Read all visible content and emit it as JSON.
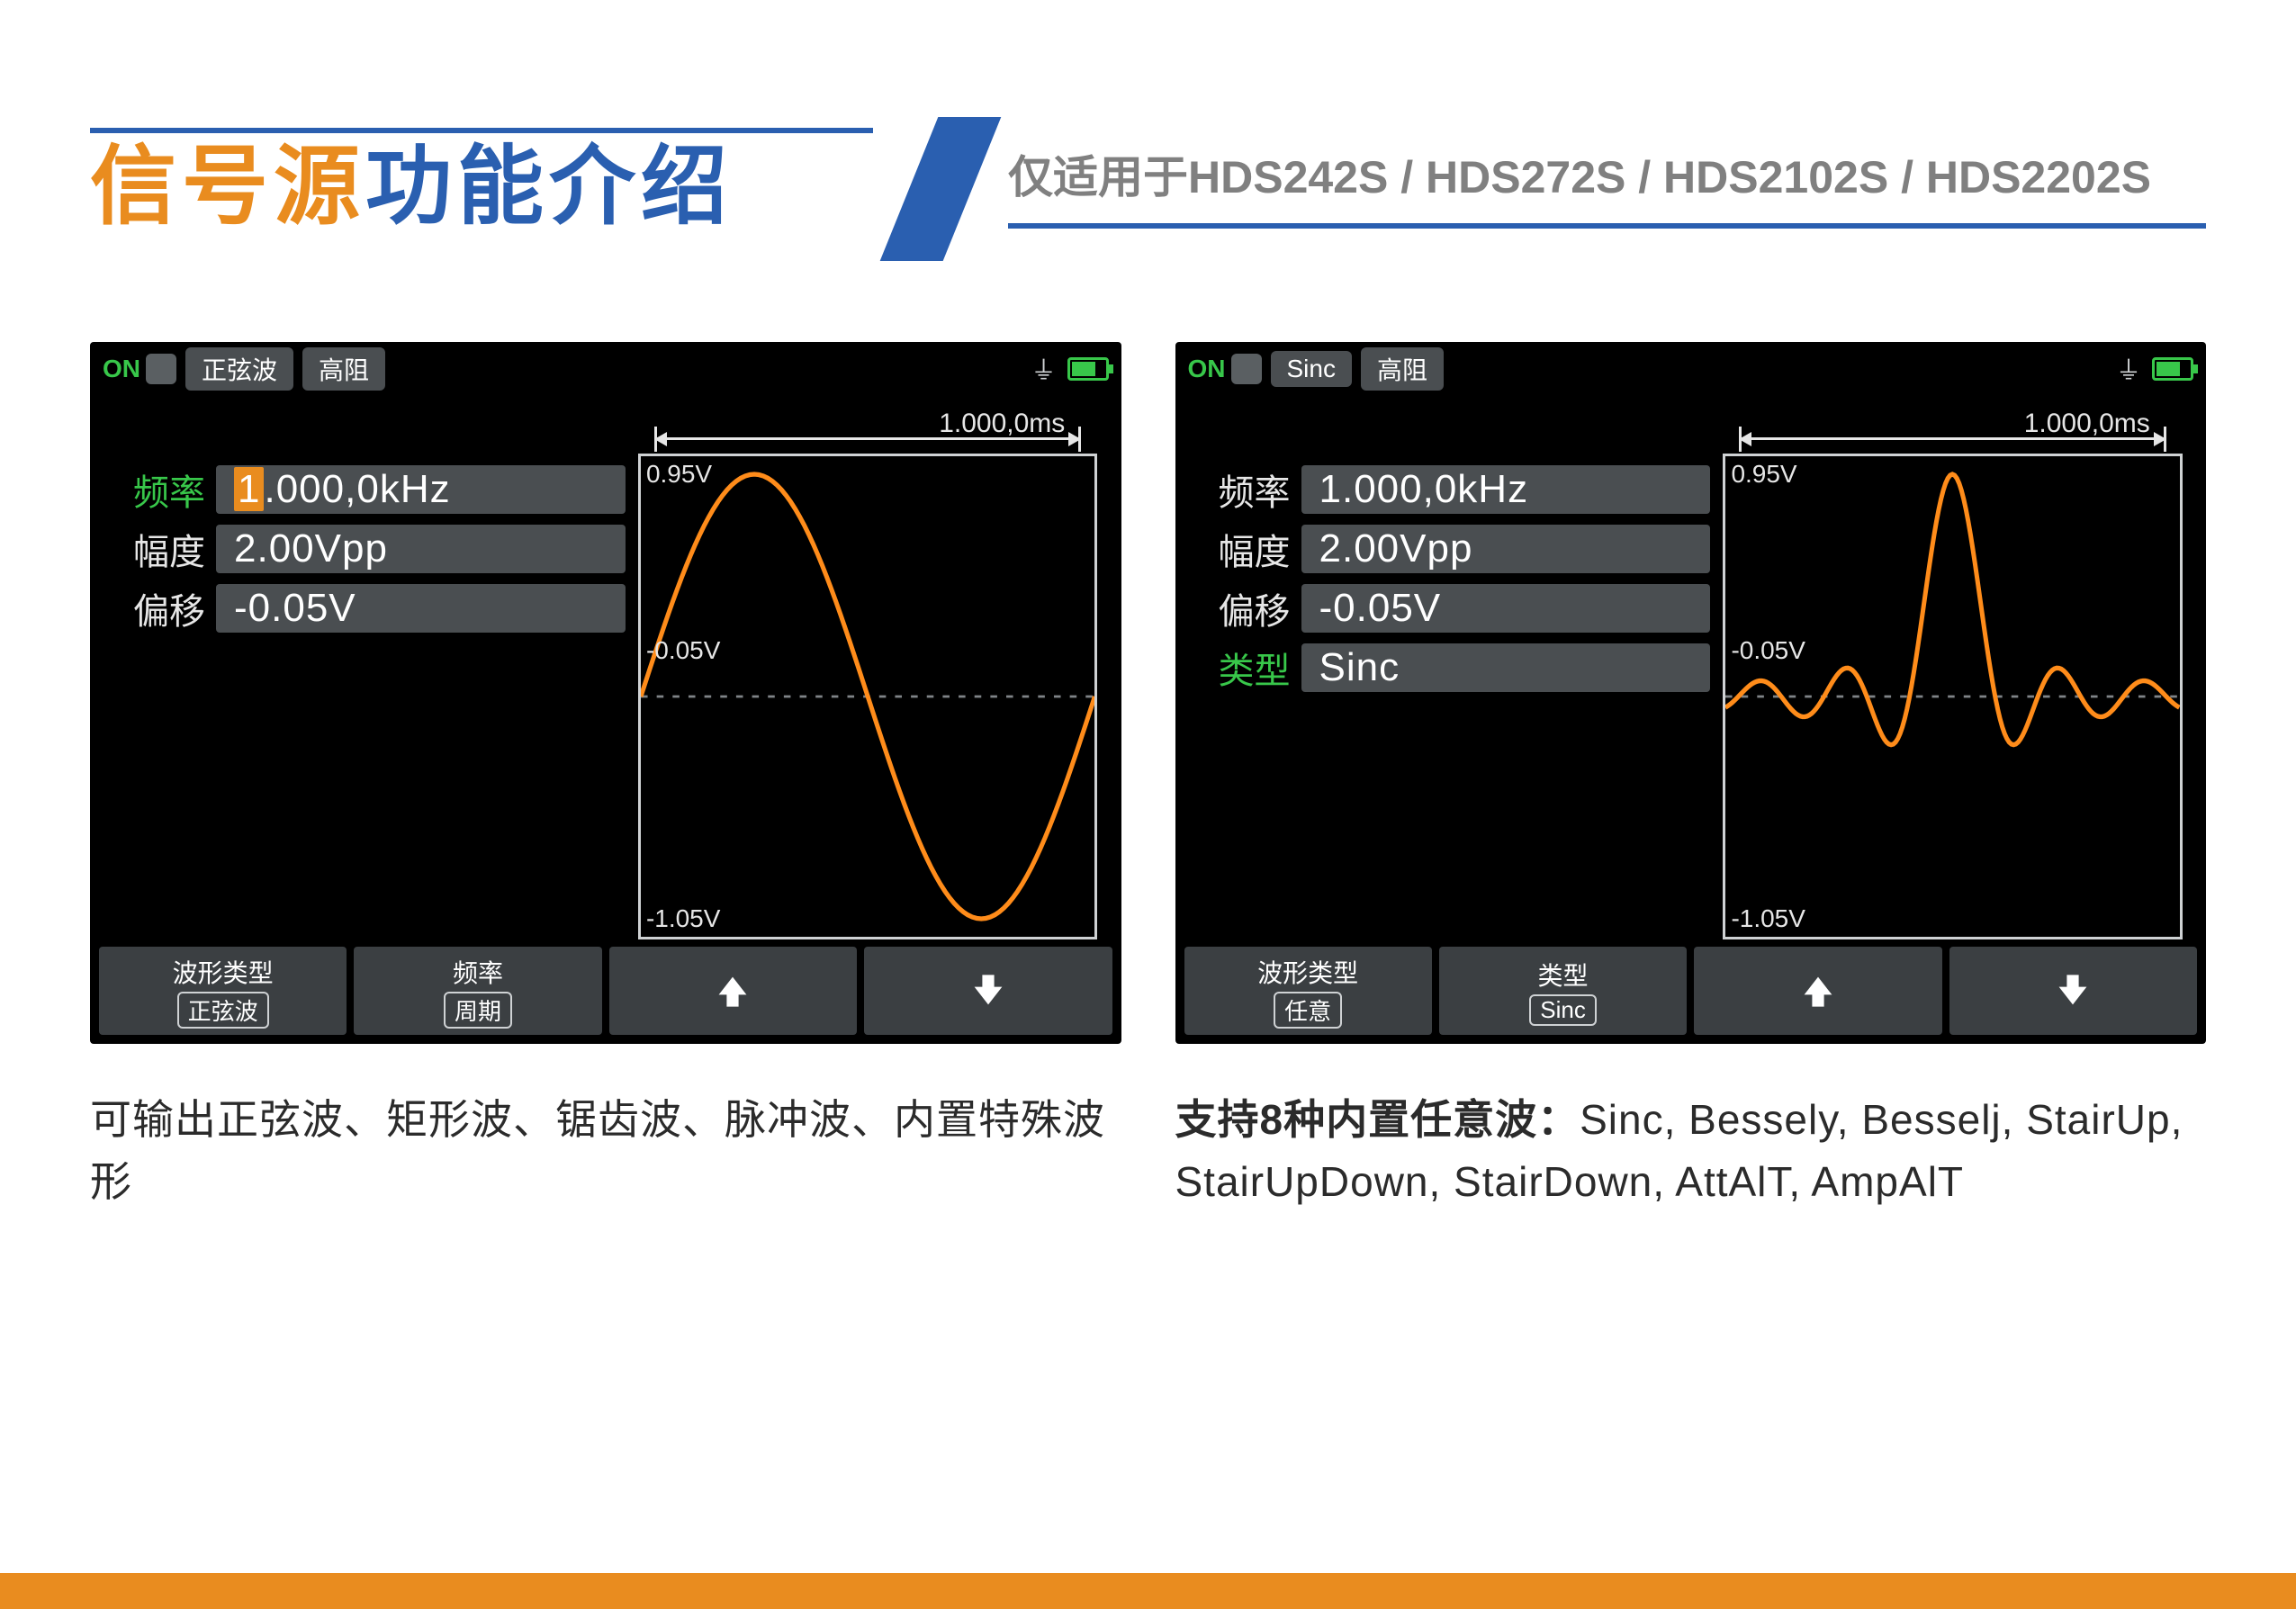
{
  "header": {
    "title_orange": "信号源",
    "title_blue": "功能介绍",
    "subtitle": "仅适用于HDS242S / HDS272S / HDS2102S / HDS2202S"
  },
  "colors": {
    "accent_orange": "#e98c1f",
    "accent_blue": "#2a5fb0",
    "wave_color": "#ff8c1a",
    "device_bg": "#000000",
    "pill_bg": "#4a4e51",
    "on_green": "#38c74a",
    "scope_border": "#cfd2d4",
    "text_light": "#e6e6e6"
  },
  "left_panel": {
    "top": {
      "on": "ON",
      "wave_type_pill": "正弦波",
      "impedance_pill": "高阻"
    },
    "params": [
      {
        "label": "频率",
        "label_green": true,
        "value": "1.000,0kHz",
        "highlight_first": true
      },
      {
        "label": "幅度",
        "label_green": false,
        "value": "2.00Vpp",
        "highlight_first": false
      },
      {
        "label": "偏移",
        "label_green": false,
        "value": "-0.05V",
        "highlight_first": false
      }
    ],
    "scope": {
      "period_label": "1.000,0ms",
      "y_top": "0.95V",
      "y_mid": "-0.05V",
      "y_bot": "-1.05V",
      "wave": "sine"
    },
    "softkeys": [
      {
        "top": "波形类型",
        "bottom": "正弦波"
      },
      {
        "top": "频率",
        "bottom": "周期"
      },
      {
        "arrow": "up"
      },
      {
        "arrow": "down"
      }
    ],
    "caption": "可输出正弦波、矩形波、锯齿波、脉冲波、内置特殊波形"
  },
  "right_panel": {
    "top": {
      "on": "ON",
      "wave_type_pill": "Sinc",
      "impedance_pill": "高阻"
    },
    "params": [
      {
        "label": "频率",
        "label_green": false,
        "value": "1.000,0kHz",
        "highlight_first": false
      },
      {
        "label": "幅度",
        "label_green": false,
        "value": "2.00Vpp",
        "highlight_first": false
      },
      {
        "label": "偏移",
        "label_green": false,
        "value": "-0.05V",
        "highlight_first": false
      },
      {
        "label": "类型",
        "label_green": true,
        "value": "Sinc",
        "highlight_first": false
      }
    ],
    "scope": {
      "period_label": "1.000,0ms",
      "y_top": "0.95V",
      "y_mid": "-0.05V",
      "y_bot": "-1.05V",
      "wave": "sinc"
    },
    "softkeys": [
      {
        "top": "波形类型",
        "bottom": "任意"
      },
      {
        "top": "类型",
        "bottom": "Sinc"
      },
      {
        "arrow": "up"
      },
      {
        "arrow": "down"
      }
    ],
    "caption_bold": "支持8种内置任意波：",
    "caption_rest": "Sinc, Bessely, Besselj, StairUp, StairUpDown, StairDown, AttAlT, AmpAlT"
  }
}
